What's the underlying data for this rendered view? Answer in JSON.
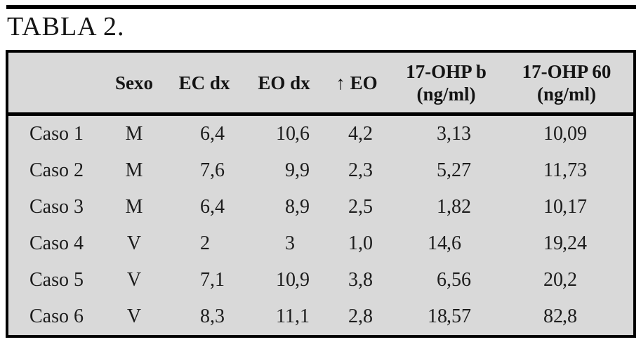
{
  "title": "TABLA 2.",
  "colors": {
    "table_background": "#d9d9d9",
    "border": "#000000",
    "text": "#141414",
    "page_background": "#ffffff"
  },
  "table": {
    "columns": [
      {
        "id": "caso",
        "line1": "",
        "line2": ""
      },
      {
        "id": "sexo",
        "line1": "Sexo",
        "line2": ""
      },
      {
        "id": "ec_dx",
        "line1": "EC dx",
        "line2": ""
      },
      {
        "id": "eo_dx",
        "line1": "EO dx",
        "line2": ""
      },
      {
        "id": "inc_eo",
        "line1": "↑ EO",
        "line2": ""
      },
      {
        "id": "ohp_b",
        "line1": "17-OHP b",
        "line2": "(ng/ml)"
      },
      {
        "id": "ohp_60",
        "line1": "17-OHP 60",
        "line2": "(ng/ml)"
      }
    ],
    "rows": [
      {
        "caso": "Caso 1",
        "sexo": "M",
        "ec_dx": "6,4",
        "eo_dx": "10,6",
        "inc_eo": "4,2",
        "ohp_b": "3,13",
        "ohp_60": "10,09"
      },
      {
        "caso": "Caso 2",
        "sexo": "M",
        "ec_dx": "7,6",
        "eo_dx": "9,9",
        "inc_eo": "2,3",
        "ohp_b": "5,27",
        "ohp_60": "11,73"
      },
      {
        "caso": "Caso 3",
        "sexo": "M",
        "ec_dx": "6,4",
        "eo_dx": "8,9",
        "inc_eo": "2,5",
        "ohp_b": "1,82",
        "ohp_60": "10,17"
      },
      {
        "caso": "Caso 4",
        "sexo": "V",
        "ec_dx": "2",
        "eo_dx": "3",
        "inc_eo": "1,0",
        "ohp_b": "14,6",
        "ohp_60": "19,24"
      },
      {
        "caso": "Caso 5",
        "sexo": "V",
        "ec_dx": "7,1",
        "eo_dx": "10,9",
        "inc_eo": "3,8",
        "ohp_b": "6,56",
        "ohp_60": "20,2"
      },
      {
        "caso": "Caso 6",
        "sexo": "V",
        "ec_dx": "8,3",
        "eo_dx": "11,1",
        "inc_eo": "2,8",
        "ohp_b": "18,57",
        "ohp_60": "82,8"
      }
    ]
  }
}
